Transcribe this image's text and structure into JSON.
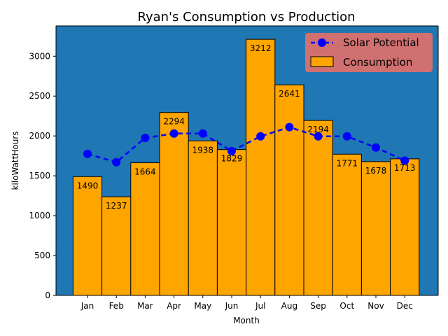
{
  "chart_data": {
    "type": "bar",
    "title": "Ryan's Consumption vs Production",
    "xlabel": "Month",
    "ylabel": "kiloWattHours",
    "categories": [
      "Jan",
      "Feb",
      "Mar",
      "Apr",
      "May",
      "Jun",
      "Jul",
      "Aug",
      "Sep",
      "Oct",
      "Nov",
      "Dec"
    ],
    "ylim": [
      0,
      3380
    ],
    "yticks": [
      0,
      500,
      1000,
      1500,
      2000,
      2500,
      3000
    ],
    "grid": false,
    "legend_position": "top-right",
    "series": [
      {
        "name": "Consumption",
        "type": "bar",
        "values": [
          1490,
          1237,
          1664,
          2294,
          1938,
          1829,
          3212,
          2641,
          2194,
          1771,
          1678,
          1713
        ],
        "labels": [
          "1490",
          "1237",
          "1664",
          "2294",
          "1938",
          "1829",
          "3212",
          "2641",
          "2194",
          "1771",
          "1678",
          "1713"
        ],
        "color": "#ffa500"
      },
      {
        "name": "Solar Potential",
        "type": "line",
        "style": "dashed",
        "marker": "circle",
        "values": [
          1775,
          1670,
          1975,
          2030,
          2030,
          1810,
          1995,
          2110,
          1995,
          1995,
          1855,
          1690
        ],
        "color": "#0000ff"
      }
    ],
    "colors": {
      "plot_background": "#1f77b4",
      "legend_background": "#d07070"
    }
  }
}
